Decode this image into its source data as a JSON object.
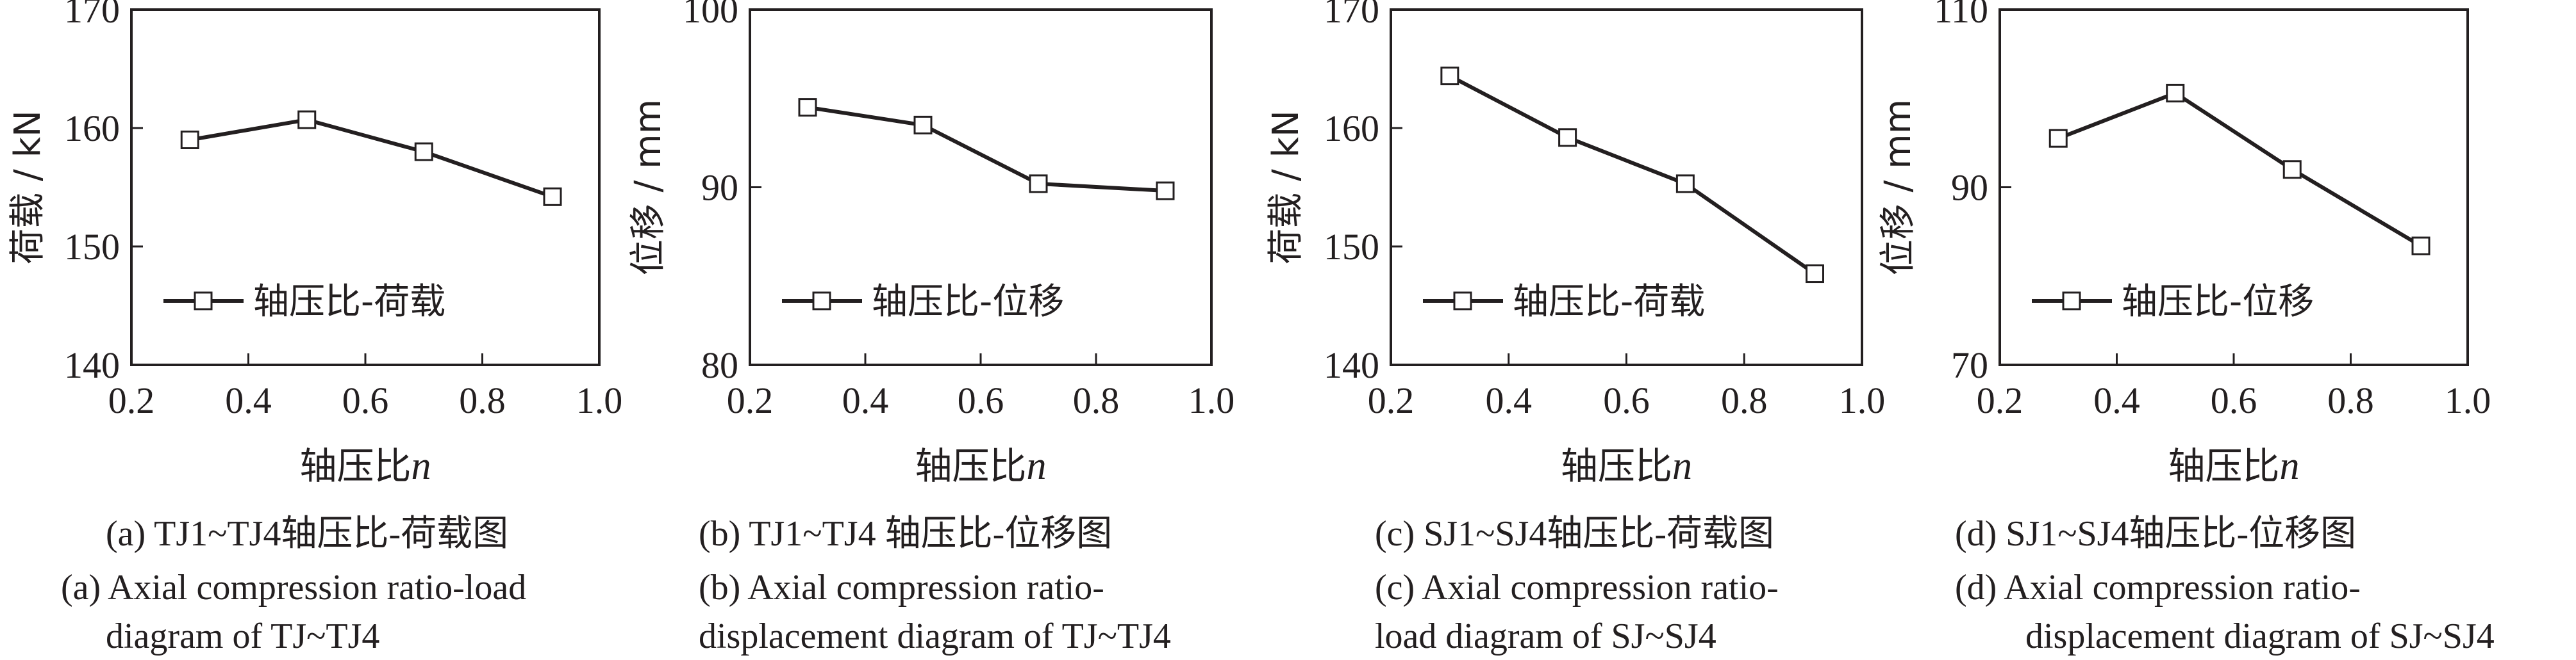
{
  "chart_data": [
    {
      "type": "line",
      "ylabel": "荷载 / kN",
      "xlabel": "轴压比",
      "xlabel_var": "n",
      "xlim": [
        0.2,
        1.0
      ],
      "ylim": [
        140,
        170
      ],
      "xticks": [
        "0.2",
        "0.4",
        "0.6",
        "0.8",
        "1.0"
      ],
      "yticks": [
        "140",
        "150",
        "160",
        "170"
      ],
      "grid": false,
      "legend_position": "lower-left",
      "series": [
        {
          "name": "轴压比-荷载",
          "x": [
            0.3,
            0.5,
            0.7,
            0.92
          ],
          "y": [
            159.0,
            160.7,
            158.0,
            154.2
          ]
        }
      ],
      "caption_zh": "(a)  TJ1~TJ4轴压比-荷载图",
      "caption_en": [
        "(a)  Axial compression ratio-load",
        "diagram of TJ~TJ4"
      ]
    },
    {
      "type": "line",
      "ylabel": "位移 / mm",
      "xlabel": "轴压比",
      "xlabel_var": "n",
      "xlim": [
        0.2,
        1.0
      ],
      "ylim": [
        80,
        100
      ],
      "xticks": [
        "0.2",
        "0.4",
        "0.6",
        "0.8",
        "1.0"
      ],
      "yticks": [
        "80",
        "90",
        "100"
      ],
      "grid": false,
      "legend_position": "lower-left",
      "series": [
        {
          "name": "轴压比-位移",
          "x": [
            0.3,
            0.5,
            0.7,
            0.92
          ],
          "y": [
            94.5,
            93.5,
            90.2,
            89.8
          ]
        }
      ],
      "caption_zh": "(b)  TJ1~TJ4 轴压比-位移图",
      "caption_en": [
        "(b)  Axial compression ratio-",
        "displacement diagram of TJ~TJ4"
      ]
    },
    {
      "type": "line",
      "ylabel": "荷载 / kN",
      "xlabel": "轴压比",
      "xlabel_var": "n",
      "xlim": [
        0.2,
        1.0
      ],
      "ylim": [
        140,
        170
      ],
      "xticks": [
        "0.2",
        "0.4",
        "0.6",
        "0.8",
        "1.0"
      ],
      "yticks": [
        "140",
        "150",
        "160",
        "170"
      ],
      "grid": false,
      "legend_position": "lower-left",
      "series": [
        {
          "name": "轴压比-荷载",
          "x": [
            0.3,
            0.5,
            0.7,
            0.92
          ],
          "y": [
            164.4,
            159.2,
            155.3,
            147.7
          ]
        }
      ],
      "caption_zh": "(c)  SJ1~SJ4轴压比-荷载图",
      "caption_en": [
        "(c)  Axial compression ratio-",
        "load diagram of SJ~SJ4"
      ]
    },
    {
      "type": "line",
      "ylabel": "位移 / mm",
      "xlabel": "轴压比",
      "xlabel_var": "n",
      "xlim": [
        0.2,
        1.0
      ],
      "ylim": [
        70,
        110
      ],
      "xticks": [
        "0.2",
        "0.4",
        "0.6",
        "0.8",
        "1.0"
      ],
      "yticks": [
        "70",
        "90",
        "110"
      ],
      "grid": false,
      "legend_position": "lower-left",
      "series": [
        {
          "name": "轴压比-位移",
          "x": [
            0.3,
            0.5,
            0.7,
            0.92
          ],
          "y": [
            95.5,
            100.6,
            92.0,
            83.4
          ]
        }
      ],
      "caption_zh": "(d)  SJ1~SJ4轴压比-位移图",
      "caption_en": [
        "(d)  Axial compression ratio-",
        "displacement diagram of SJ~SJ4"
      ]
    }
  ],
  "colors": {
    "ink": "#231f20",
    "background": "#ffffff"
  }
}
